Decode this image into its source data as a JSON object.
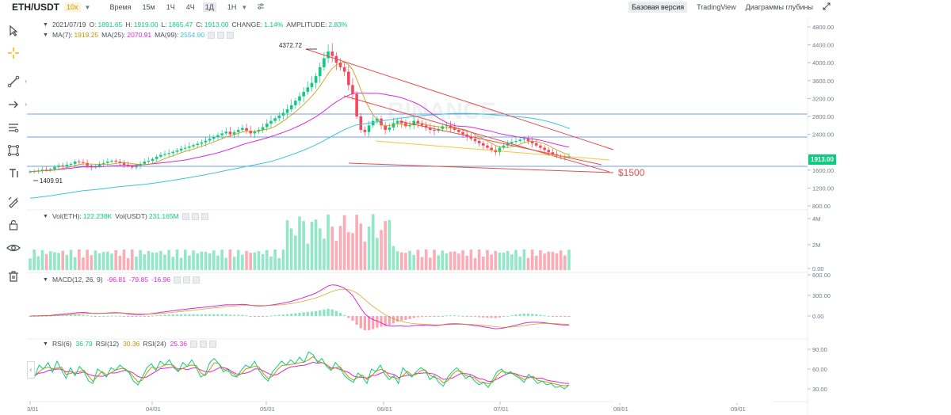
{
  "topbar": {
    "symbol": "ETH/USDT",
    "leverage": "10x",
    "timeframes": [
      "Время",
      "15м",
      "1Ч",
      "4Ч",
      "1Д",
      "1Н"
    ],
    "selected_timeframe": "1Д",
    "views": [
      "Базовая версия",
      "TradingView",
      "Диаграммы глубины"
    ],
    "active_view": "Базовая версия"
  },
  "left_tools": [
    "cursor-icon",
    "crosshair-icon",
    "trendline-icon",
    "arrow-line-icon",
    "fib-icon",
    "pattern-icon",
    "text-icon",
    "brush-icon",
    "lock-icon",
    "eye-icon",
    "trash-icon"
  ],
  "price_legend": {
    "date": "2021/07/19",
    "open_label": "O:",
    "open": "1891.65",
    "high_label": "H:",
    "high": "1919.00",
    "low_label": "L:",
    "low": "1865.47",
    "close_label": "C:",
    "close": "1913.00",
    "change_label": "CHANGE:",
    "change": "1.14%",
    "amp_label": "AMPLITUDE:",
    "amp": "2.83%"
  },
  "ma_legend": {
    "ma7_label": "MA(7):",
    "ma7": "1919.25",
    "ma25_label": "MA(25):",
    "ma25": "2070.91",
    "ma99_label": "MA(99):",
    "ma99": "2554.90"
  },
  "vol_legend": {
    "eth_label": "Vol(ETH):",
    "eth": "122.238K",
    "usdt_label": "Vol(USDT)",
    "usdt": "231.165M"
  },
  "macd_legend": {
    "label": "MACD(12, 26, 9)",
    "v1": "-96.81",
    "v2": "-79.85",
    "v3": "-16.96"
  },
  "rsi_legend": {
    "r6_label": "RSI(6)",
    "r6": "36.79",
    "r12_label": "RSI(12)",
    "r12": "30.36",
    "r24_label": "RSI(24)",
    "r24": "25.36"
  },
  "price_axis": [
    "4800.00",
    "4400.00",
    "4000.00",
    "3600.00",
    "3200.00",
    "2800.00",
    "2400.00",
    "1600.00",
    "1200.00",
    "800.00"
  ],
  "current_price": "1913.00",
  "vol_axis": [
    "4M",
    "2M",
    "0.00"
  ],
  "macd_axis": [
    "600.00",
    "300.00",
    "0.00"
  ],
  "rsi_axis": [
    "90.00",
    "60.00",
    "30.00"
  ],
  "time_axis": [
    "3/01",
    "04/01",
    "05/01",
    "06/01",
    "07/01",
    "08/01",
    "09/01"
  ],
  "annotations": {
    "high": "4372.72",
    "low": "1409.91",
    "target": "$1500"
  },
  "watermark": "BINANCE",
  "colors": {
    "up": "#0ecb81",
    "down": "#f6465d",
    "ma7": "#c99400",
    "ma25": "#d82ad8",
    "ma99": "#3fc3d9",
    "accent": "#0ecb81"
  },
  "series": {
    "closes": [
      1567,
      1575,
      1590,
      1610,
      1600,
      1620,
      1670,
      1700,
      1680,
      1720,
      1740,
      1790,
      1780,
      1760,
      1700,
      1660,
      1690,
      1740,
      1760,
      1790,
      1810,
      1790,
      1760,
      1720,
      1690,
      1660,
      1700,
      1740,
      1790,
      1810,
      1850,
      1900,
      1940,
      1960,
      1980,
      2010,
      2040,
      2080,
      2100,
      2130,
      2160,
      2190,
      2220,
      2260,
      2300,
      2340,
      2380,
      2420,
      2460,
      2400,
      2450,
      2500,
      2540,
      2480,
      2420,
      2460,
      2500,
      2560,
      2640,
      2700,
      2760,
      2820,
      2880,
      2960,
      3050,
      3150,
      3250,
      3350,
      3450,
      3550,
      3700,
      3900,
      4100,
      4250,
      4150,
      4000,
      3900,
      3800,
      3500,
      3300,
      2800,
      2500,
      2450,
      2600,
      2700,
      2750,
      2600,
      2500,
      2550,
      2650,
      2700,
      2650,
      2580,
      2600,
      2700,
      2650,
      2600,
      2550,
      2500,
      2480,
      2520,
      2580,
      2600,
      2550,
      2500,
      2450,
      2400,
      2350,
      2300,
      2250,
      2200,
      2150,
      2100,
      2050,
      2000,
      2100,
      2150,
      2200,
      2230,
      2250,
      2280,
      2300,
      2250,
      2200,
      2150,
      2100,
      2050,
      2000,
      1950,
      1920,
      1900,
      1890,
      1913
    ],
    "rsi6": [
      52,
      48,
      66,
      60,
      70,
      55,
      72,
      58,
      46,
      62,
      50,
      64,
      56,
      42,
      38,
      60,
      55,
      48,
      62,
      58,
      66,
      60,
      55,
      42,
      36,
      48,
      62,
      68,
      58,
      72,
      66,
      74,
      62,
      56,
      70,
      64,
      74,
      62,
      48,
      52,
      70,
      76,
      68,
      56,
      60,
      50,
      48,
      58,
      66,
      62,
      72,
      58,
      48,
      42,
      56,
      64,
      72,
      66,
      74,
      68,
      78,
      70,
      86,
      82,
      70,
      76,
      64,
      58,
      70,
      62,
      50,
      44,
      40,
      54,
      48,
      38,
      60,
      56,
      66,
      52,
      44,
      50,
      38,
      62,
      54,
      48,
      56,
      62,
      58,
      44,
      50,
      40,
      34,
      48,
      56,
      62,
      54,
      46,
      50,
      42,
      36,
      40,
      32,
      44,
      56,
      60,
      52,
      56,
      50,
      46,
      40,
      52,
      46,
      38,
      42,
      36,
      38,
      32,
      34,
      30,
      36
    ]
  }
}
